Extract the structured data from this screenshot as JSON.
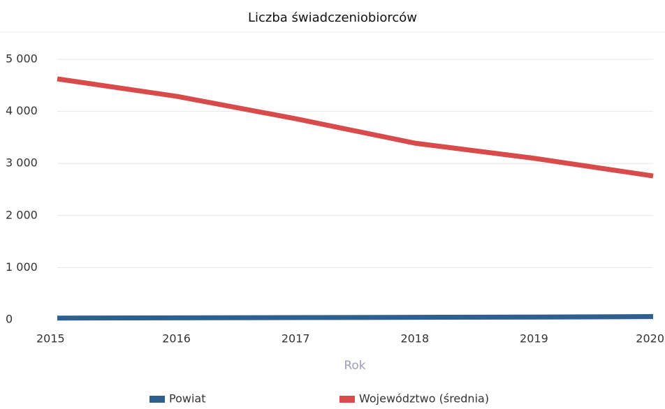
{
  "chart_data": {
    "type": "line",
    "title": "Liczba świadczeniobiorców",
    "x_label": "Rok",
    "x": [
      2015,
      2016,
      2017,
      2018,
      2019,
      2020
    ],
    "series": [
      {
        "name": "Powiat",
        "color": "#2f5f8f",
        "values": [
          30,
          35,
          40,
          45,
          50,
          60
        ]
      },
      {
        "name": "Województwo (średnia)",
        "color": "#d94a4a",
        "values": [
          4625,
          4290,
          3860,
          3390,
          3100,
          2760
        ]
      }
    ],
    "xlim": [
      2015,
      2020
    ],
    "xticks": [
      2015,
      2016,
      2017,
      2018,
      2019,
      2020
    ],
    "ylim": [
      0,
      5000
    ],
    "yticks": [
      0,
      {
        "value": 1000,
        "label": "1 000"
      },
      {
        "value": 2000,
        "label": "2 000"
      },
      {
        "value": 3000,
        "label": "3 000"
      },
      {
        "value": 4000,
        "label": "4 000"
      },
      {
        "value": 5000,
        "label": "5 000"
      }
    ],
    "grid": true,
    "legend": "bottom"
  }
}
